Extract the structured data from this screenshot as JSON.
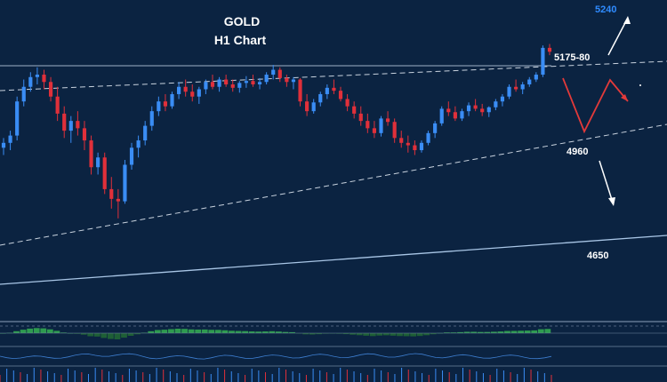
{
  "chart_data": {
    "type": "candlestick",
    "instrument": "GOLD",
    "timeframe": "H1 Chart",
    "candles": [
      [
        4975,
        4995,
        4960,
        4985
      ],
      [
        4985,
        5010,
        4970,
        5000
      ],
      [
        5000,
        5080,
        4990,
        5070
      ],
      [
        5070,
        5115,
        5060,
        5100
      ],
      [
        5100,
        5130,
        5090,
        5120
      ],
      [
        5120,
        5140,
        5105,
        5125
      ],
      [
        5125,
        5135,
        5095,
        5110
      ],
      [
        5110,
        5120,
        5070,
        5080
      ],
      [
        5080,
        5100,
        5030,
        5045
      ],
      [
        5045,
        5060,
        4995,
        5010
      ],
      [
        5010,
        5040,
        4985,
        5030
      ],
      [
        5030,
        5050,
        5000,
        5015
      ],
      [
        5015,
        5030,
        4970,
        4990
      ],
      [
        4990,
        5000,
        4920,
        4935
      ],
      [
        4935,
        4965,
        4920,
        4955
      ],
      [
        4955,
        4965,
        4880,
        4890
      ],
      [
        4890,
        4915,
        4850,
        4870
      ],
      [
        4870,
        4890,
        4830,
        4865
      ],
      [
        4865,
        4950,
        4860,
        4940
      ],
      [
        4940,
        4985,
        4930,
        4975
      ],
      [
        4975,
        5000,
        4955,
        4990
      ],
      [
        4990,
        5030,
        4980,
        5020
      ],
      [
        5020,
        5060,
        5010,
        5050
      ],
      [
        5050,
        5080,
        5040,
        5070
      ],
      [
        5070,
        5085,
        5050,
        5060
      ],
      [
        5060,
        5090,
        5055,
        5085
      ],
      [
        5085,
        5110,
        5075,
        5100
      ],
      [
        5100,
        5115,
        5080,
        5090
      ],
      [
        5090,
        5105,
        5070,
        5080
      ],
      [
        5080,
        5100,
        5065,
        5095
      ],
      [
        5095,
        5115,
        5085,
        5110
      ],
      [
        5110,
        5125,
        5095,
        5100
      ],
      [
        5100,
        5120,
        5090,
        5115
      ],
      [
        5115,
        5125,
        5100,
        5105
      ],
      [
        5105,
        5115,
        5090,
        5098
      ],
      [
        5098,
        5112,
        5088,
        5108
      ],
      [
        5108,
        5122,
        5098,
        5112
      ],
      [
        5112,
        5125,
        5100,
        5105
      ],
      [
        5105,
        5118,
        5095,
        5110
      ],
      [
        5110,
        5130,
        5105,
        5125
      ],
      [
        5125,
        5145,
        5115,
        5135
      ],
      [
        5135,
        5140,
        5110,
        5118
      ],
      [
        5118,
        5125,
        5100,
        5110
      ],
      [
        5110,
        5120,
        5095,
        5115
      ],
      [
        5115,
        5118,
        5060,
        5070
      ],
      [
        5070,
        5085,
        5040,
        5050
      ],
      [
        5050,
        5075,
        5045,
        5068
      ],
      [
        5068,
        5090,
        5060,
        5085
      ],
      [
        5085,
        5105,
        5075,
        5098
      ],
      [
        5098,
        5115,
        5085,
        5092
      ],
      [
        5092,
        5100,
        5070,
        5075
      ],
      [
        5075,
        5085,
        5050,
        5060
      ],
      [
        5060,
        5070,
        5035,
        5045
      ],
      [
        5045,
        5060,
        5020,
        5030
      ],
      [
        5030,
        5045,
        5005,
        5015
      ],
      [
        5015,
        5030,
        4995,
        5005
      ],
      [
        5005,
        5040,
        4998,
        5035
      ],
      [
        5035,
        5050,
        5020,
        5028
      ],
      [
        5028,
        5035,
        4985,
        4995
      ],
      [
        4995,
        5010,
        4975,
        4985
      ],
      [
        4985,
        5000,
        4965,
        4980
      ],
      [
        4980,
        4990,
        4960,
        4970
      ],
      [
        4970,
        4990,
        4965,
        4985
      ],
      [
        4985,
        5010,
        4980,
        5005
      ],
      [
        5005,
        5030,
        4995,
        5025
      ],
      [
        5025,
        5060,
        5020,
        5055
      ],
      [
        5055,
        5070,
        5040,
        5048
      ],
      [
        5048,
        5060,
        5030,
        5035
      ],
      [
        5035,
        5055,
        5030,
        5050
      ],
      [
        5050,
        5068,
        5040,
        5062
      ],
      [
        5062,
        5075,
        5050,
        5055
      ],
      [
        5055,
        5065,
        5040,
        5048
      ],
      [
        5048,
        5060,
        5038,
        5058
      ],
      [
        5058,
        5075,
        5052,
        5070
      ],
      [
        5070,
        5085,
        5060,
        5080
      ],
      [
        5080,
        5105,
        5075,
        5100
      ],
      [
        5100,
        5115,
        5090,
        5095
      ],
      [
        5095,
        5110,
        5085,
        5105
      ],
      [
        5105,
        5120,
        5100,
        5115
      ],
      [
        5115,
        5130,
        5110,
        5125
      ],
      [
        5125,
        5185,
        5120,
        5180
      ],
      [
        5180,
        5188,
        5165,
        5172
      ]
    ],
    "price_range": [
      4640,
      5260
    ],
    "levels": [
      {
        "label": "5240",
        "price": 5240,
        "color": "#2f8bff"
      },
      {
        "label": "5175-80",
        "price": 5175,
        "color": "#ffffff"
      },
      {
        "label": "4960",
        "price": 4960,
        "color": "#ffffff"
      },
      {
        "label": "4650",
        "price": 4650,
        "color": "#ffffff"
      }
    ],
    "colors": {
      "background": "#0b2341",
      "bull": "#3a8df5",
      "bear": "#e0303a",
      "trend": "#c9d3df",
      "projection_up": "#e33a3a",
      "projection_down": "#ffffff",
      "osc_pos": "#2e9b4f",
      "osc_neg": "#1e5f36"
    },
    "grid": false,
    "legend": "none"
  }
}
